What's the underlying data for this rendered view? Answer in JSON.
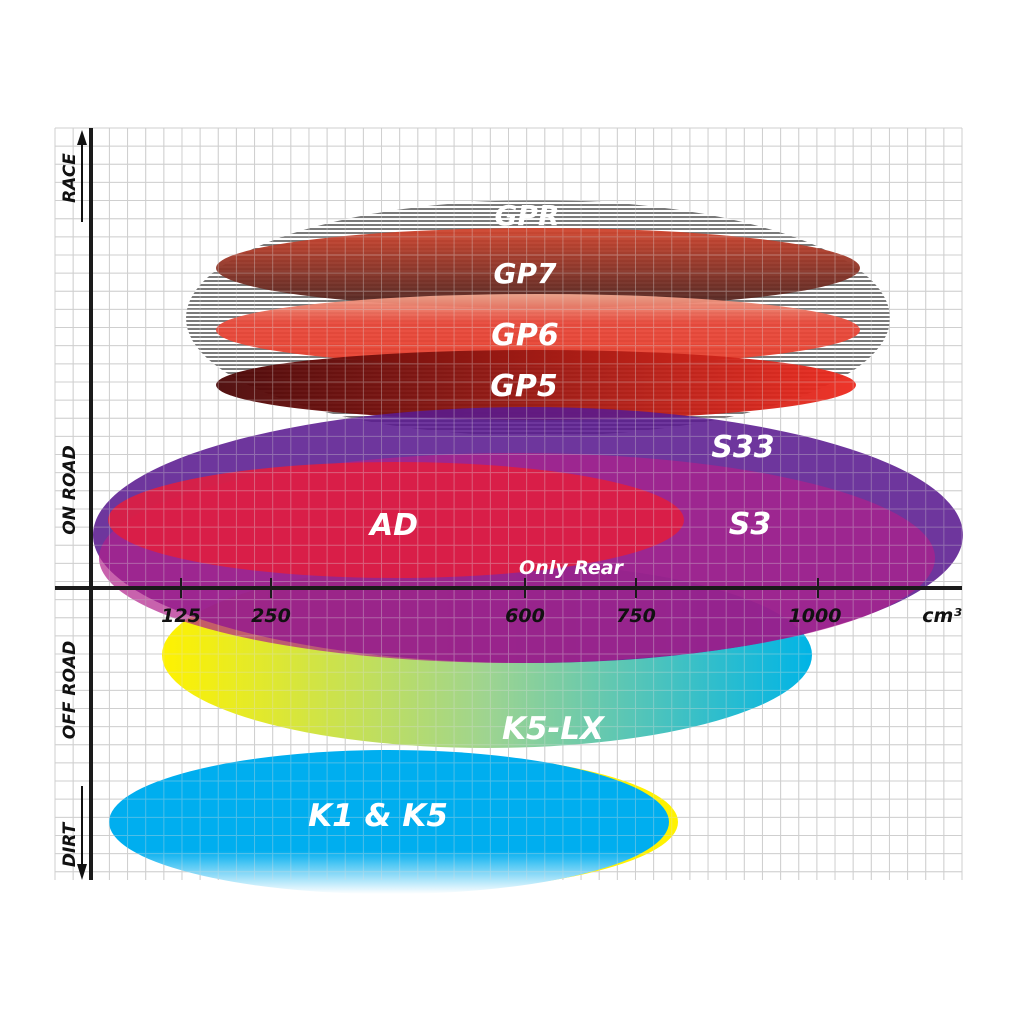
{
  "y_axis": {
    "labels": [
      "RACE",
      "ON ROAD",
      "OFF ROAD",
      "DIRT"
    ]
  },
  "x_axis": {
    "ticks": [
      "125",
      "250",
      "600",
      "750",
      "1000"
    ],
    "unit": "cm³"
  },
  "tires": {
    "gpr": {
      "label": "GPR",
      "color": "#9a9a9a"
    },
    "gp7": {
      "label": "GP7",
      "color": "#8b3a2a"
    },
    "gp6": {
      "label": "GP6",
      "color": "#e8483a"
    },
    "gp5": {
      "label": "GP5",
      "color": "#a01818"
    },
    "s33": {
      "label": "S33",
      "color": "#6a2a98"
    },
    "s3": {
      "label": "S3",
      "color": "#a4208c"
    },
    "ad": {
      "label": "AD",
      "color": "#dc1e44"
    },
    "ad_note": {
      "label": "Only Rear"
    },
    "k5lx": {
      "label": "K5-LX",
      "color_start": "#fff200",
      "color_end": "#00b4e6"
    },
    "k1k5": {
      "label": "K1 & K5",
      "color": "#00aeef"
    }
  }
}
